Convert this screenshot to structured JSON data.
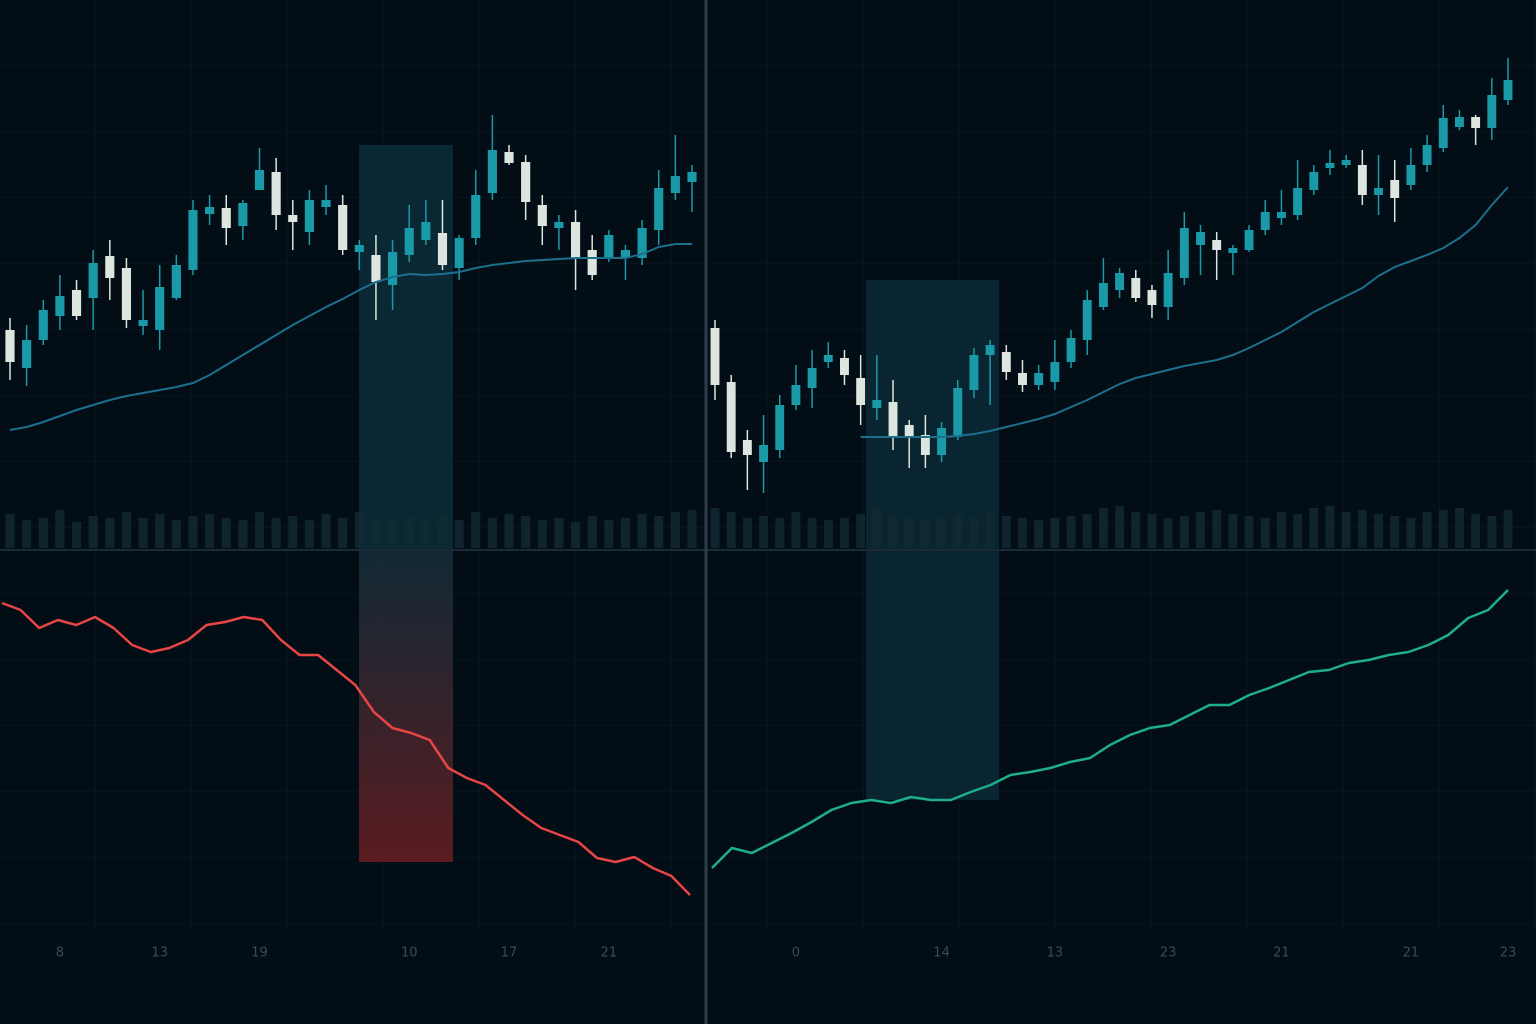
{
  "chart_data": [
    {
      "type": "candlestick",
      "up_color": "#1a9aa8",
      "down_color": "#dde6de",
      "ma_color": "#1d6f8e",
      "volume_color": "#132a32",
      "indicator_color": "#e84545",
      "ylim": [
        0,
        460
      ],
      "volume_lim": [
        0,
        50
      ],
      "indicator_lim": [
        0,
        370
      ],
      "categories": [
        null,
        null,
        null,
        "8",
        null,
        null,
        null,
        null,
        null,
        "13",
        null,
        null,
        null,
        null,
        null,
        "19",
        null,
        null,
        null,
        null,
        null,
        null,
        null,
        null,
        "10",
        null,
        null,
        null,
        null,
        null,
        "17",
        null,
        null,
        null,
        null,
        null,
        "21",
        null,
        null,
        null,
        null,
        null
      ],
      "open": [
        170,
        132,
        160,
        184,
        210,
        202,
        244,
        232,
        174,
        170,
        202,
        230,
        286,
        292,
        274,
        310,
        328,
        285,
        268,
        293,
        295,
        248,
        245,
        215,
        245,
        260,
        267,
        232,
        262,
        307,
        348,
        338,
        295,
        272,
        278,
        250,
        242,
        242,
        242,
        270,
        307,
        318
      ],
      "high": [
        182,
        175,
        200,
        225,
        220,
        250,
        260,
        242,
        210,
        235,
        245,
        300,
        305,
        305,
        300,
        352,
        342,
        300,
        310,
        315,
        305,
        260,
        265,
        260,
        295,
        300,
        300,
        265,
        330,
        385,
        355,
        345,
        305,
        285,
        290,
        265,
        270,
        255,
        280,
        330,
        365,
        335
      ],
      "low": [
        120,
        114,
        155,
        170,
        180,
        170,
        200,
        172,
        165,
        150,
        200,
        225,
        275,
        255,
        260,
        310,
        270,
        250,
        255,
        285,
        245,
        230,
        180,
        190,
        238,
        255,
        230,
        220,
        255,
        300,
        335,
        280,
        255,
        250,
        210,
        220,
        238,
        220,
        235,
        255,
        300,
        288
      ],
      "close": [
        138,
        160,
        190,
        204,
        184,
        237,
        222,
        180,
        180,
        213,
        235,
        290,
        293,
        272,
        297,
        330,
        285,
        278,
        300,
        300,
        250,
        255,
        218,
        248,
        272,
        278,
        235,
        262,
        305,
        350,
        337,
        298,
        274,
        278,
        242,
        225,
        265,
        250,
        272,
        312,
        324,
        328
      ],
      "ma": [
        70,
        73,
        78,
        84,
        90,
        95,
        100,
        104,
        107,
        110,
        113,
        117,
        125,
        135,
        145,
        155,
        165,
        175,
        184,
        193,
        201,
        210,
        218,
        223,
        226,
        225,
        226,
        228,
        232,
        235,
        237,
        239,
        240,
        241,
        242,
        242,
        242,
        242,
        246,
        253,
        256,
        256
      ],
      "volume": [
        34,
        28,
        30,
        38,
        26,
        32,
        30,
        36,
        30,
        34,
        28,
        32,
        34,
        30,
        28,
        36,
        30,
        32,
        28,
        34,
        30,
        36,
        30,
        28,
        32,
        30,
        34,
        28,
        36,
        30,
        34,
        32,
        28,
        30,
        26,
        32,
        28,
        30,
        34,
        32,
        36,
        38
      ],
      "indicator": [
        327,
        320,
        302,
        310,
        305,
        313,
        302,
        285,
        278,
        282,
        290,
        305,
        308,
        313,
        310,
        290,
        275,
        275,
        260,
        245,
        218,
        202,
        197,
        190,
        162,
        152,
        145,
        130,
        115,
        102,
        95,
        88,
        72,
        68,
        73,
        62,
        54,
        35
      ]
    },
    {
      "type": "candlestick",
      "up_color": "#1a9aa8",
      "down_color": "#dde6de",
      "ma_color": "#1d6f8e",
      "volume_color": "#132a32",
      "indicator_color": "#1fae8a",
      "ylim": [
        0,
        460
      ],
      "volume_lim": [
        0,
        50
      ],
      "indicator_lim": [
        0,
        370
      ],
      "categories": [
        null,
        null,
        null,
        null,
        null,
        "0",
        null,
        null,
        null,
        null,
        null,
        null,
        null,
        null,
        "14",
        null,
        null,
        null,
        null,
        null,
        null,
        "13",
        null,
        null,
        null,
        null,
        null,
        null,
        "23",
        null,
        null,
        null,
        null,
        null,
        null,
        "21",
        null,
        null,
        null,
        null,
        null,
        null,
        null,
        "21",
        null,
        null,
        null,
        null,
        null,
        "23"
      ],
      "open": [
        172,
        118,
        60,
        38,
        50,
        95,
        112,
        138,
        142,
        122,
        92,
        98,
        75,
        65,
        45,
        63,
        110,
        145,
        148,
        127,
        115,
        118,
        138,
        160,
        193,
        210,
        222,
        210,
        193,
        222,
        255,
        260,
        247,
        250,
        270,
        282,
        285,
        310,
        332,
        335,
        335,
        305,
        320,
        315,
        335,
        352,
        373,
        383,
        372,
        400
      ],
      "high": [
        180,
        125,
        70,
        85,
        105,
        135,
        150,
        158,
        150,
        145,
        145,
        120,
        80,
        85,
        78,
        120,
        152,
        160,
        155,
        140,
        135,
        160,
        170,
        210,
        242,
        232,
        230,
        215,
        250,
        288,
        275,
        268,
        255,
        275,
        300,
        310,
        340,
        335,
        350,
        345,
        350,
        345,
        340,
        352,
        365,
        395,
        390,
        385,
        422,
        442
      ],
      "low": [
        100,
        42,
        10,
        7,
        42,
        90,
        92,
        132,
        115,
        75,
        80,
        50,
        32,
        32,
        38,
        60,
        102,
        95,
        120,
        108,
        110,
        110,
        132,
        145,
        190,
        202,
        198,
        182,
        180,
        215,
        225,
        220,
        225,
        248,
        265,
        275,
        280,
        305,
        325,
        332,
        295,
        285,
        278,
        310,
        328,
        348,
        370,
        355,
        360,
        395
      ],
      "close": [
        115,
        48,
        45,
        55,
        95,
        115,
        132,
        145,
        125,
        95,
        100,
        62,
        63,
        45,
        72,
        112,
        145,
        155,
        128,
        115,
        127,
        138,
        162,
        200,
        217,
        227,
        202,
        195,
        227,
        272,
        268,
        250,
        252,
        270,
        288,
        288,
        312,
        328,
        337,
        340,
        305,
        312,
        302,
        335,
        355,
        382,
        383,
        372,
        405,
        420
      ],
      "ma": [
        null,
        null,
        null,
        null,
        null,
        null,
        null,
        null,
        null,
        63,
        63,
        63,
        63,
        63,
        63,
        64,
        66,
        69,
        73,
        77,
        81,
        86,
        93,
        100,
        108,
        116,
        122,
        126,
        130,
        134,
        137,
        140,
        145,
        152,
        160,
        168,
        178,
        188,
        196,
        204,
        212,
        224,
        233,
        239,
        245,
        252,
        262,
        275,
        295,
        313
      ],
      "volume": [
        40,
        36,
        30,
        32,
        30,
        36,
        30,
        28,
        30,
        34,
        40,
        32,
        30,
        28,
        30,
        34,
        30,
        36,
        32,
        30,
        28,
        30,
        32,
        34,
        40,
        42,
        36,
        34,
        30,
        32,
        36,
        38,
        34,
        32,
        30,
        36,
        34,
        40,
        42,
        36,
        38,
        34,
        32,
        30,
        36,
        38,
        40,
        34,
        32,
        38
      ],
      "indicator": [
        62,
        82,
        77,
        87,
        97,
        108,
        120,
        127,
        130,
        127,
        133,
        130,
        130,
        138,
        145,
        155,
        158,
        162,
        168,
        172,
        185,
        195,
        202,
        205,
        215,
        225,
        225,
        235,
        242,
        250,
        258,
        260,
        267,
        270,
        275,
        278,
        285,
        295,
        312,
        320,
        340
      ]
    }
  ]
}
